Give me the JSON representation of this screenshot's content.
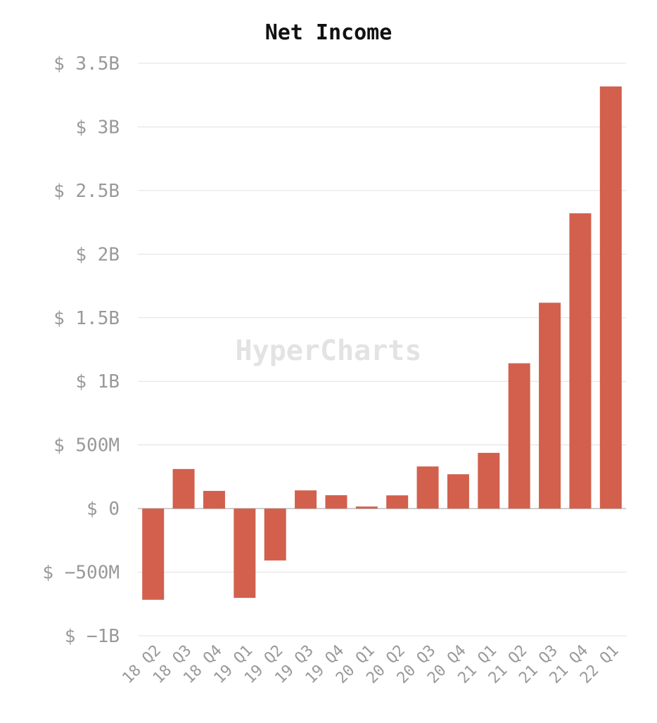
{
  "chart_data": {
    "type": "bar",
    "title": "Net Income",
    "watermark": "HyperCharts",
    "categories": [
      "18 Q2",
      "18 Q3",
      "18 Q4",
      "19 Q1",
      "19 Q2",
      "19 Q3",
      "19 Q4",
      "20 Q1",
      "20 Q2",
      "20 Q3",
      "20 Q4",
      "21 Q1",
      "21 Q2",
      "21 Q3",
      "21 Q4",
      "22 Q1"
    ],
    "values": [
      -717,
      311,
      139,
      -702,
      -408,
      143,
      105,
      16,
      104,
      331,
      270,
      438,
      1142,
      1618,
      2321,
      3318
    ],
    "unit": "millions USD",
    "ylim": [
      -1000,
      3500
    ],
    "yticks": [
      -1000,
      -500,
      0,
      500,
      1000,
      1500,
      2000,
      2500,
      3000,
      3500
    ],
    "ytick_labels": [
      "$ −1B",
      "$ −500M",
      "$ 0",
      "$ 500M",
      "$ 1B",
      "$ 1.5B",
      "$ 2B",
      "$ 2.5B",
      "$ 3B",
      "$ 3.5B"
    ],
    "xlabel": "",
    "ylabel": "",
    "grid": true,
    "bar_color": "#d2604d"
  }
}
